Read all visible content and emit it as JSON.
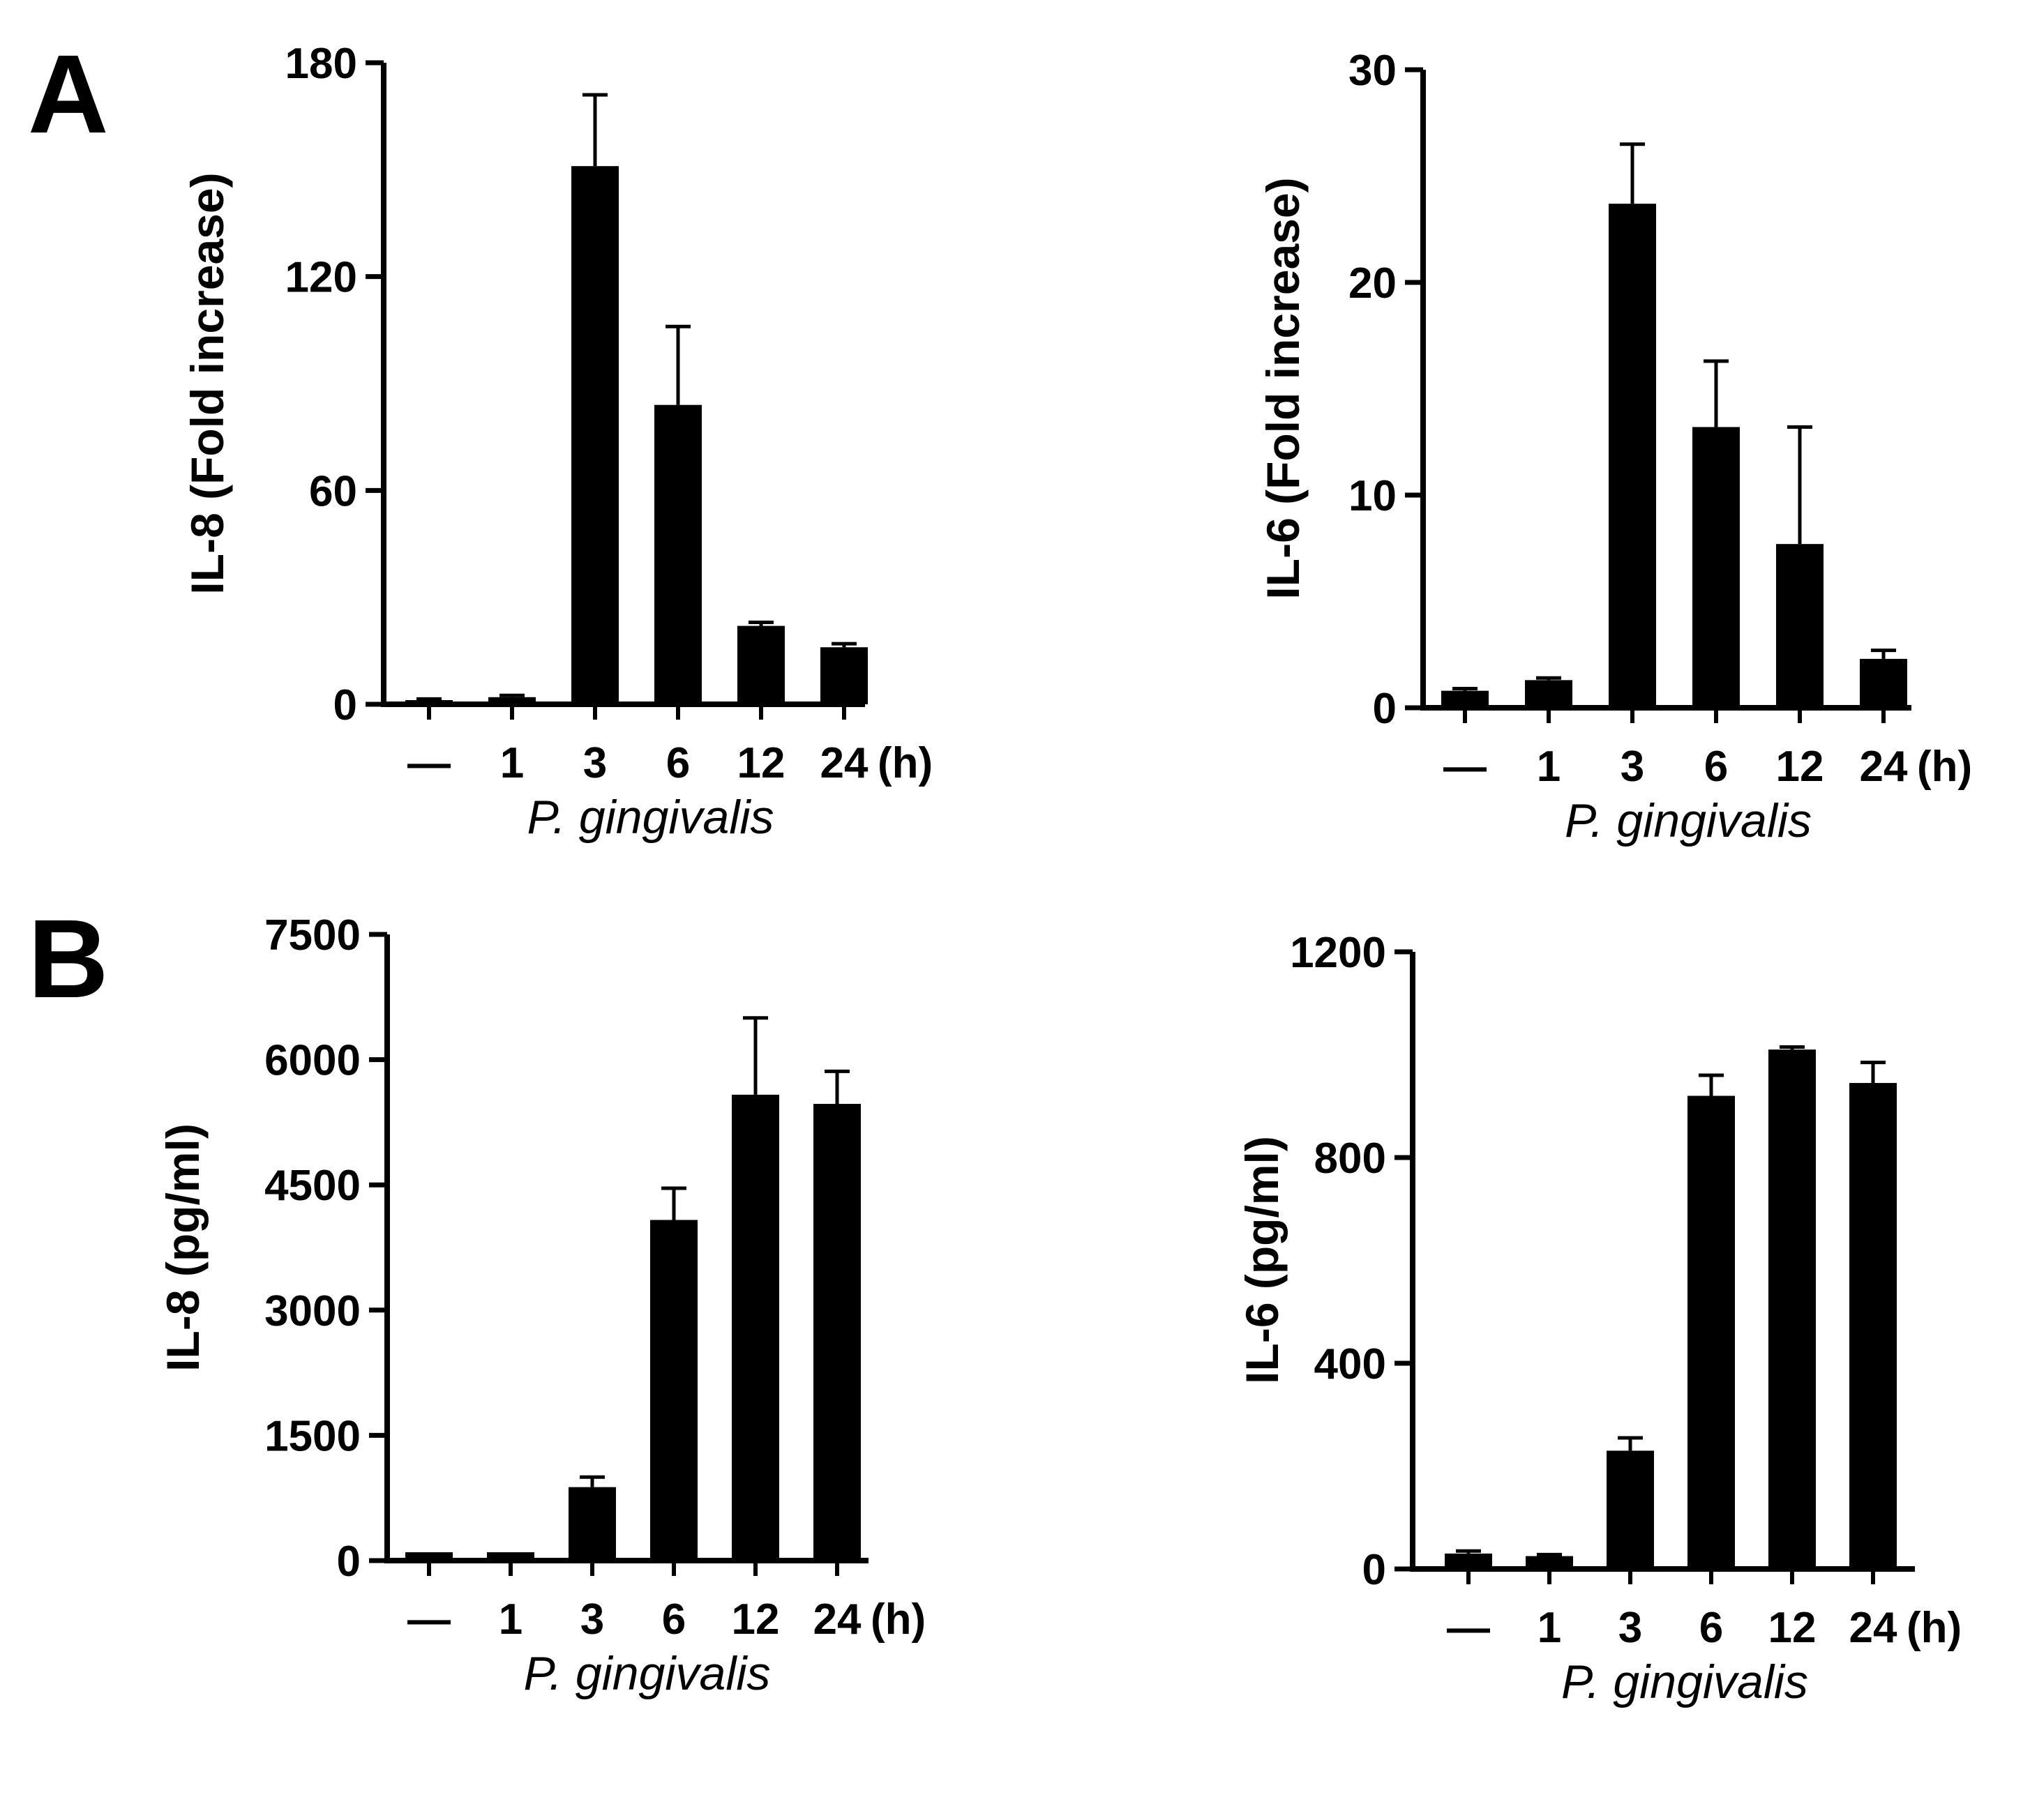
{
  "panels": [
    {
      "letter": "A"
    },
    {
      "letter": "B"
    }
  ],
  "chart_data": [
    {
      "type": "bar",
      "panel": "A",
      "categories": [
        "—",
        "1",
        "3",
        "6",
        "12",
        "24"
      ],
      "unit_label": "(h)",
      "xlabel": "P. gingivalis",
      "ylabel": "IL-8 (Fold increase)",
      "ylim": [
        0,
        180
      ],
      "yticks": [
        0,
        60,
        120,
        180
      ],
      "values": [
        1,
        2,
        151,
        84,
        22,
        16
      ],
      "errors": [
        0.5,
        0.5,
        20,
        22,
        1,
        1
      ],
      "grid": false,
      "color": "#000000"
    },
    {
      "type": "bar",
      "panel": "A",
      "categories": [
        "—",
        "1",
        "3",
        "6",
        "12",
        "24"
      ],
      "unit_label": "(h)",
      "xlabel": "P. gingivalis",
      "ylabel": "IL-6 (Fold increase)",
      "ylim": [
        0,
        30
      ],
      "yticks": [
        0,
        10,
        20,
        30
      ],
      "values": [
        0.8,
        1.3,
        23.7,
        13.2,
        7.7,
        2.3
      ],
      "errors": [
        0.1,
        0.1,
        2.8,
        3.1,
        5.5,
        0.4
      ],
      "grid": false,
      "color": "#000000"
    },
    {
      "type": "bar",
      "panel": "B",
      "categories": [
        "—",
        "1",
        "3",
        "6",
        "12",
        "24"
      ],
      "unit_label": "(h)",
      "xlabel": "P. gingivalis",
      "ylabel": "IL-8 (pg/ml)",
      "ylim": [
        0,
        7500
      ],
      "yticks": [
        0,
        1500,
        3000,
        4500,
        6000,
        7500
      ],
      "values": [
        100,
        100,
        880,
        4080,
        5580,
        5470
      ],
      "errors": [
        0,
        0,
        120,
        380,
        920,
        390
      ],
      "grid": false,
      "color": "#000000"
    },
    {
      "type": "bar",
      "panel": "B",
      "categories": [
        "—",
        "1",
        "3",
        "6",
        "12",
        "24"
      ],
      "unit_label": "(h)",
      "xlabel": "P. gingivalis",
      "ylabel": "IL-6 (pg/ml)",
      "ylim": [
        0,
        1200
      ],
      "yticks": [
        0,
        400,
        800,
        1200
      ],
      "values": [
        30,
        25,
        230,
        920,
        1010,
        945
      ],
      "errors": [
        5,
        3,
        25,
        40,
        5,
        40
      ],
      "grid": false,
      "color": "#000000"
    }
  ]
}
